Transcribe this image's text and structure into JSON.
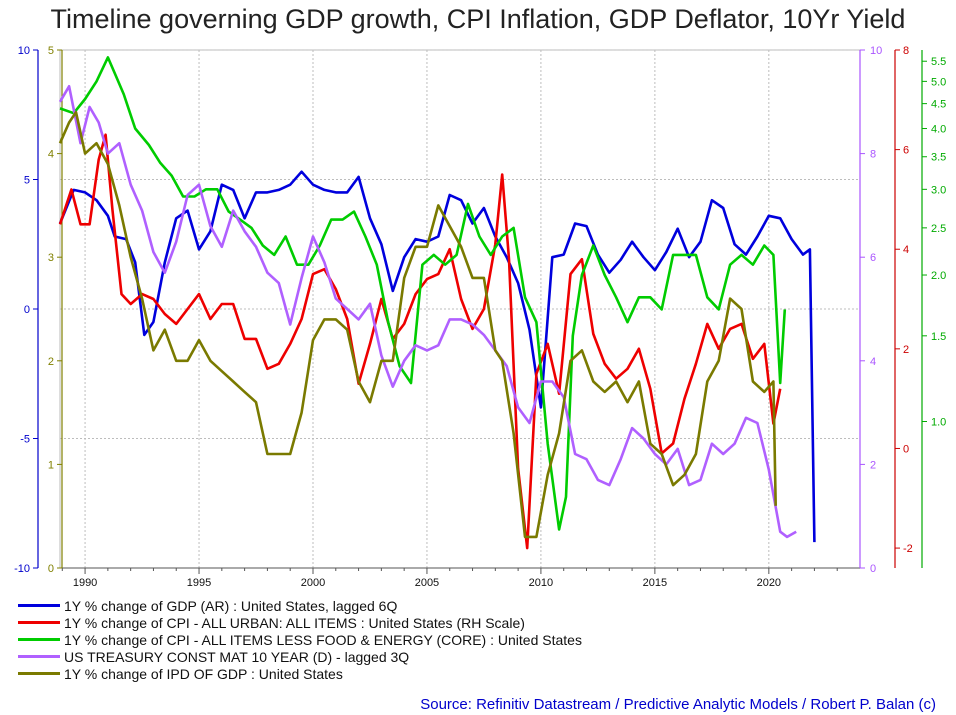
{
  "chart_data": {
    "type": "line",
    "title": "Timeline governing GDP growth, CPI Inflation, GDP Deflator, 10Yr Yield",
    "x_ticks": [
      "1990",
      "1995",
      "2000",
      "2005",
      "2010",
      "2015",
      "2020"
    ],
    "xlim": [
      1988.9,
      2024
    ],
    "grid": true,
    "axes": {
      "gdp": {
        "side": "left",
        "color": "#0000cc",
        "ylim": [
          -10,
          10
        ],
        "ticks": [
          "10",
          "5",
          "0",
          "-5",
          "-10"
        ]
      },
      "ipd": {
        "side": "left",
        "color": "#808000",
        "ylim": [
          0,
          5
        ],
        "ticks": [
          "5",
          "4",
          "3",
          "2",
          "1",
          "0"
        ]
      },
      "yield": {
        "side": "right",
        "color": "#aa55ff",
        "ylim": [
          0,
          10
        ],
        "ticks": [
          "10",
          "8",
          "6",
          "4",
          "2",
          "0"
        ]
      },
      "cpi": {
        "side": "right",
        "color": "#cc0000",
        "ylim": [
          -2.4,
          8
        ],
        "ticks": [
          "8",
          "6",
          "4",
          "2",
          "0",
          "-2"
        ]
      },
      "core": {
        "side": "right",
        "color": "#00aa00",
        "ylim": [
          0.5,
          5.8
        ],
        "ticks": [
          "5.5",
          "5.0",
          "4.5",
          "4.0",
          "3.5",
          "3.0",
          "2.5",
          "2.0",
          "1.5",
          "1.0"
        ],
        "scale": "log"
      }
    },
    "series": [
      {
        "name": "1Y % change of GDP (AR) : United States, lagged 6Q",
        "axis": "gdp",
        "color": "#0000dd",
        "x": [
          1988.9,
          1989.5,
          1990,
          1990.5,
          1991,
          1991.3,
          1991.8,
          1992.2,
          1992.6,
          1993,
          1993.5,
          1994,
          1994.5,
          1995,
          1995.5,
          1996,
          1996.5,
          1997,
          1997.5,
          1998,
          1998.5,
          1999,
          1999.5,
          2000,
          2000.5,
          2001,
          2001.5,
          2002,
          2002.5,
          2003,
          2003.5,
          2004,
          2004.5,
          2005,
          2005.5,
          2006,
          2006.5,
          2007,
          2007.5,
          2008,
          2008.5,
          2009,
          2009.5,
          2010,
          2010.5,
          2011,
          2011.5,
          2012,
          2012.5,
          2013,
          2013.5,
          2014,
          2014.5,
          2015,
          2015.5,
          2016,
          2016.5,
          2017,
          2017.5,
          2018,
          2018.5,
          2019,
          2019.5,
          2020,
          2020.5,
          2021,
          2021.5,
          2021.8,
          2022
        ],
        "y": [
          3.3,
          4.6,
          4.5,
          4.2,
          3.6,
          2.8,
          2.7,
          1.8,
          -1,
          -0.5,
          1.8,
          3.5,
          3.8,
          2.3,
          3,
          4.8,
          4.6,
          3.5,
          4.5,
          4.5,
          4.6,
          4.8,
          5.3,
          4.8,
          4.6,
          4.5,
          4.5,
          5.1,
          3.5,
          2.5,
          0.7,
          2,
          2.7,
          2.6,
          2.8,
          4.4,
          4.2,
          3.3,
          3.9,
          2.8,
          2.0,
          1.0,
          -0.8,
          -3.8,
          2.0,
          2.1,
          3.3,
          3.2,
          2.1,
          1.4,
          1.9,
          2.6,
          2.0,
          1.5,
          2.2,
          3.1,
          2.0,
          2.6,
          4.2,
          3.9,
          2.5,
          2.1,
          2.8,
          3.6,
          3.5,
          2.7,
          2.1,
          2.3,
          -9
        ]
      },
      {
        "name": "1Y % change of CPI - ALL URBAN: ALL ITEMS : United States (RH Scale)",
        "axis": "cpi",
        "color": "#ee0000",
        "x": [
          1988.9,
          1989.4,
          1989.8,
          1990.2,
          1990.6,
          1990.9,
          1991.2,
          1991.6,
          1992,
          1992.5,
          1993,
          1993.5,
          1994,
          1994.5,
          1995,
          1995.5,
          1996,
          1996.5,
          1997,
          1997.5,
          1998,
          1998.5,
          1999,
          1999.5,
          2000,
          2000.5,
          2001,
          2001.5,
          2002,
          2002.5,
          2003,
          2003.5,
          2004,
          2004.5,
          2005,
          2005.5,
          2006,
          2006.5,
          2007,
          2007.5,
          2008,
          2008.3,
          2008.6,
          2009,
          2009.4,
          2009.8,
          2010.3,
          2010.8,
          2011.3,
          2011.8,
          2012.3,
          2012.8,
          2013.3,
          2013.8,
          2014.3,
          2014.8,
          2015.3,
          2015.8,
          2016.3,
          2016.8,
          2017.3,
          2017.8,
          2018.3,
          2018.8,
          2019.3,
          2019.8,
          2020.2,
          2020.5
        ],
        "y": [
          4.5,
          5.2,
          4.5,
          4.5,
          5.8,
          6.3,
          4.8,
          3.1,
          2.9,
          3.1,
          3.0,
          2.7,
          2.5,
          2.8,
          3.1,
          2.6,
          2.9,
          2.9,
          2.2,
          2.2,
          1.6,
          1.7,
          2.1,
          2.6,
          3.5,
          3.6,
          3.2,
          2.6,
          1.3,
          2.1,
          3.0,
          2.2,
          2.5,
          3.1,
          3.4,
          3.5,
          4.0,
          3.0,
          2.4,
          2.8,
          4.1,
          5.5,
          3.8,
          -0.4,
          -2.0,
          1.5,
          2.1,
          1.1,
          3.5,
          3.8,
          2.3,
          1.7,
          1.4,
          1.6,
          2.0,
          1.2,
          -0.1,
          0.1,
          1.0,
          1.7,
          2.5,
          2.0,
          2.4,
          2.5,
          1.8,
          2.1,
          0.5,
          1.2
        ]
      },
      {
        "name": "1Y % change of CPI - ALL ITEMS LESS FOOD & ENERGY (CORE) : United States",
        "axis": "core",
        "color": "#00cc00",
        "x": [
          1988.9,
          1989.5,
          1990,
          1990.5,
          1991,
          1991.3,
          1991.7,
          1992.2,
          1992.8,
          1993.3,
          1993.8,
          1994.3,
          1994.8,
          1995.3,
          1995.8,
          1996.3,
          1996.8,
          1997.3,
          1997.8,
          1998.3,
          1998.8,
          1999.3,
          1999.8,
          2000.3,
          2000.8,
          2001.3,
          2001.8,
          2002.3,
          2002.8,
          2003.3,
          2003.8,
          2004.3,
          2004.8,
          2005.3,
          2005.8,
          2006.3,
          2006.8,
          2007.3,
          2007.8,
          2008.3,
          2008.8,
          2009.3,
          2009.8,
          2010.3,
          2010.8,
          2011.1,
          2011.4,
          2011.8,
          2012.3,
          2012.8,
          2013.3,
          2013.8,
          2014.3,
          2014.8,
          2015.3,
          2015.8,
          2016.3,
          2016.8,
          2017.3,
          2017.8,
          2018.3,
          2018.8,
          2019.3,
          2019.8,
          2020.2,
          2020.5,
          2020.7
        ],
        "y": [
          4.4,
          4.3,
          4.6,
          5.0,
          5.6,
          5.2,
          4.7,
          4.0,
          3.7,
          3.4,
          3.2,
          2.9,
          2.9,
          3.0,
          3.0,
          2.7,
          2.6,
          2.5,
          2.3,
          2.2,
          2.4,
          2.1,
          2.1,
          2.3,
          2.6,
          2.6,
          2.7,
          2.4,
          2.1,
          1.6,
          1.3,
          1.2,
          2.1,
          2.2,
          2.1,
          2.2,
          2.8,
          2.4,
          2.2,
          2.4,
          2.5,
          1.8,
          1.6,
          0.9,
          0.6,
          0.7,
          1.5,
          2.0,
          2.3,
          2.0,
          1.8,
          1.6,
          1.8,
          1.8,
          1.7,
          2.2,
          2.2,
          2.2,
          1.8,
          1.7,
          2.1,
          2.2,
          2.1,
          2.3,
          2.2,
          1.2,
          1.7
        ]
      },
      {
        "name": "US TREASURY CONST MAT 10 YEAR (D) - lagged 3Q",
        "axis": "yield",
        "color": "#b060ff",
        "x": [
          1988.9,
          1989.3,
          1989.8,
          1990.2,
          1990.6,
          1991,
          1991.5,
          1992,
          1992.5,
          1993,
          1993.5,
          1994,
          1994.5,
          1995,
          1995.5,
          1996,
          1996.5,
          1997,
          1997.5,
          1998,
          1998.5,
          1999,
          1999.5,
          2000,
          2000.5,
          2001,
          2001.5,
          2002,
          2002.5,
          2003,
          2003.5,
          2004,
          2004.5,
          2005,
          2005.5,
          2006,
          2006.5,
          2007,
          2007.5,
          2008,
          2008.5,
          2009,
          2009.5,
          2010,
          2010.5,
          2011,
          2011.5,
          2012,
          2012.5,
          2013,
          2013.5,
          2014,
          2014.5,
          2015,
          2015.5,
          2016,
          2016.5,
          2017,
          2017.5,
          2018,
          2018.5,
          2019,
          2019.5,
          2020,
          2020.5,
          2020.8,
          2021.2
        ],
        "y": [
          9.0,
          9.3,
          8.2,
          8.9,
          8.6,
          8.0,
          8.2,
          7.4,
          6.9,
          6.1,
          5.7,
          6.3,
          7.2,
          7.4,
          6.6,
          6.2,
          6.9,
          6.5,
          6.2,
          5.7,
          5.5,
          4.7,
          5.6,
          6.4,
          5.9,
          5.2,
          5.0,
          4.8,
          5.1,
          4.1,
          3.5,
          4.0,
          4.3,
          4.2,
          4.3,
          4.8,
          4.8,
          4.7,
          4.5,
          4.2,
          3.9,
          3.1,
          2.8,
          3.6,
          3.6,
          3.3,
          2.2,
          2.1,
          1.7,
          1.6,
          2.1,
          2.7,
          2.5,
          2.2,
          2.0,
          2.3,
          1.6,
          1.7,
          2.4,
          2.2,
          2.4,
          2.9,
          2.8,
          1.9,
          0.7,
          0.6,
          0.7
        ]
      },
      {
        "name": "1Y % change of IPD OF GDP : United States",
        "axis": "ipd",
        "color": "#7a7a00",
        "x": [
          1988.9,
          1989.3,
          1989.6,
          1990,
          1990.5,
          1991,
          1991.5,
          1992,
          1992.5,
          1993,
          1993.5,
          1994,
          1994.5,
          1995,
          1995.5,
          1996,
          1996.5,
          1997,
          1997.5,
          1998,
          1998.5,
          1999,
          1999.5,
          2000,
          2000.5,
          2001,
          2001.5,
          2002,
          2002.5,
          2003,
          2003.5,
          2004,
          2004.5,
          2005,
          2005.5,
          2006,
          2006.5,
          2007,
          2007.5,
          2008,
          2008.3,
          2008.8,
          2009.3,
          2009.8,
          2010.3,
          2010.8,
          2011.3,
          2011.8,
          2012.3,
          2012.8,
          2013.3,
          2013.8,
          2014.3,
          2014.8,
          2015.3,
          2015.8,
          2016.3,
          2016.8,
          2017.3,
          2017.8,
          2018.3,
          2018.8,
          2019.3,
          2019.8,
          2020.2,
          2020.3
        ],
        "y": [
          4.1,
          4.3,
          4.4,
          4.0,
          4.1,
          3.9,
          3.5,
          3.0,
          2.6,
          2.1,
          2.3,
          2.0,
          2.0,
          2.2,
          2.0,
          1.9,
          1.8,
          1.7,
          1.6,
          1.1,
          1.1,
          1.1,
          1.5,
          2.2,
          2.4,
          2.4,
          2.3,
          1.8,
          1.6,
          2.0,
          2.0,
          2.8,
          3.1,
          3.1,
          3.5,
          3.3,
          3.1,
          2.8,
          2.8,
          2.1,
          2.0,
          1.3,
          0.3,
          0.3,
          0.9,
          1.3,
          2.0,
          2.1,
          1.8,
          1.7,
          1.8,
          1.6,
          1.8,
          1.2,
          1.1,
          0.8,
          0.9,
          1.1,
          1.8,
          2.0,
          2.6,
          2.5,
          1.8,
          1.7,
          1.8,
          0.6
        ]
      }
    ]
  },
  "source": "Source: Refinitiv Datastream / Predictive Analytic Models / Robert P. Balan (c)"
}
